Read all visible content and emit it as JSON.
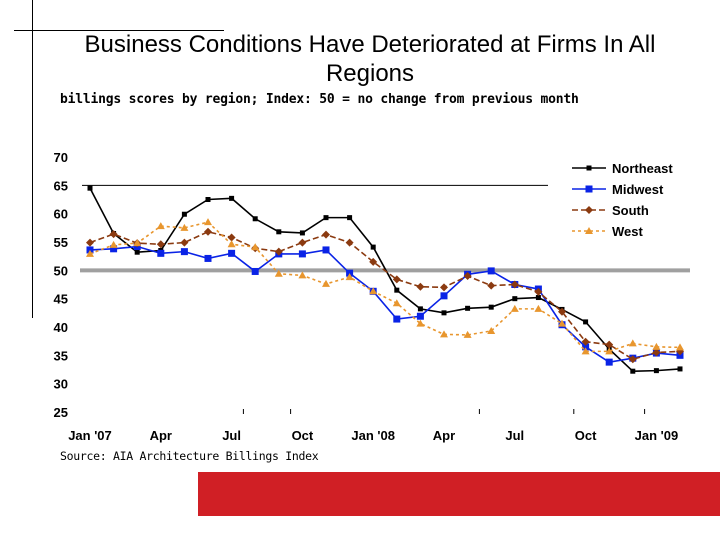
{
  "title": "Business Conditions Have Deteriorated at Firms In All Regions",
  "subtitle": "billings scores by region; Index:  50 = no change from previous month",
  "source": "Source: AIA Architecture Billings Index",
  "colors": {
    "northeast": "#000000",
    "midwest": "#0a23e6",
    "south": "#8b3a10",
    "west": "#e8962e",
    "reference_line": "#a0a0a0",
    "red_band": "#d01f25"
  },
  "chart_data": {
    "type": "line",
    "ylim": [
      25,
      70
    ],
    "yticks": [
      70,
      65,
      60,
      55,
      50,
      45,
      40,
      35,
      30,
      25
    ],
    "xlabels": [
      "Jan '07",
      "Apr",
      "Jul",
      "Oct",
      "Jan '08",
      "Apr",
      "Jul",
      "Oct",
      "Jan '09"
    ],
    "x": [
      "Jan '07",
      "Feb '07",
      "Mar '07",
      "Apr '07",
      "May '07",
      "Jun '07",
      "Jul '07",
      "Aug '07",
      "Sep '07",
      "Oct '07",
      "Nov '07",
      "Dec '07",
      "Jan '08",
      "Feb '08",
      "Mar '08",
      "Apr '08",
      "May '08",
      "Jun '08",
      "Jul '08",
      "Aug '08",
      "Sep '08",
      "Oct '08",
      "Nov '08",
      "Dec '08",
      "Jan '09",
      "Feb '09"
    ],
    "reference_line": 50,
    "legend_position": "top-right",
    "series": [
      {
        "name": "Northeast",
        "marker": "square-small",
        "dash": "solid",
        "values": [
          64.5,
          56.5,
          53.2,
          53.5,
          59.9,
          62.5,
          62.7,
          59.1,
          56.8,
          56.6,
          59.3,
          59.3,
          54.1,
          46.5,
          43.2,
          42.5,
          43.3,
          43.5,
          45.0,
          45.2,
          43.1,
          40.9,
          36.1,
          32.2,
          32.3,
          32.6
        ]
      },
      {
        "name": "Midwest",
        "marker": "square",
        "dash": "solid",
        "values": [
          53.6,
          53.8,
          54.2,
          53.0,
          53.3,
          52.1,
          53.0,
          49.8,
          52.9,
          52.9,
          53.6,
          49.5,
          46.3,
          41.4,
          41.9,
          45.5,
          49.3,
          49.9,
          47.5,
          46.7,
          40.4,
          36.5,
          33.8,
          34.5,
          35.4,
          35.0
        ]
      },
      {
        "name": "South",
        "marker": "diamond",
        "dash": "dashed",
        "values": [
          54.9,
          56.4,
          54.8,
          54.6,
          54.9,
          56.8,
          55.8,
          53.9,
          53.3,
          54.9,
          56.3,
          54.9,
          51.5,
          48.4,
          47.1,
          47.0,
          49.0,
          47.3,
          47.5,
          46.2,
          42.7,
          37.4,
          36.9,
          34.3,
          35.5,
          35.7
        ]
      },
      {
        "name": "West",
        "marker": "triangle",
        "dash": "dashed",
        "values": [
          52.9,
          54.5,
          54.8,
          57.8,
          57.5,
          58.5,
          54.6,
          54.1,
          49.4,
          49.1,
          47.6,
          48.8,
          46.3,
          44.2,
          40.6,
          38.7,
          38.6,
          39.3,
          43.2,
          43.2,
          40.6,
          35.7,
          35.7,
          37.1,
          36.5,
          36.4
        ]
      }
    ]
  }
}
